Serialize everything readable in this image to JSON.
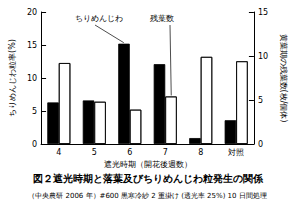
{
  "chart_data": {
    "type": "bar",
    "title": "図２遮光時期と落葉及びちりめんじわ粒発生の関係",
    "subtitle": "（中央農研 2006 年）#600 黒寒冷紗 2 重掛け (透光率 25%) 10 日間処理",
    "x_label": "遮光時期（開花後週数）",
    "y_label": "ちりめんじわ粒率(%)",
    "y2_label": "黄葉期の残葉数(枚/個体)",
    "categories": [
      "4",
      "5",
      "6",
      "7",
      "8",
      "対照"
    ],
    "ylim": [
      0,
      20
    ],
    "yticks": [
      0,
      5,
      10,
      15,
      20
    ],
    "y2lim": [
      0,
      15
    ],
    "y2ticks": [
      0,
      5,
      10,
      15
    ],
    "grid": false,
    "series": [
      {
        "name": "ちりめんじわ",
        "color": "#000000",
        "values": [
          6.3,
          6.6,
          15.2,
          12.1,
          0.9,
          3.6
        ]
      },
      {
        "name": "残葉数",
        "color": "#ffffff",
        "axis": "y2",
        "values": [
          9.2,
          4.8,
          3.9,
          5.4,
          9.9,
          9.4
        ]
      }
    ]
  }
}
